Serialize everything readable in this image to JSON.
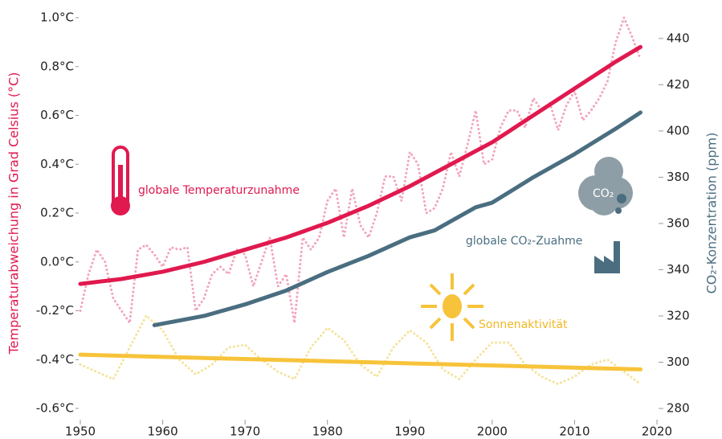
{
  "chart_data": {
    "type": "line",
    "y_label": "Temperaturabweichung in Grad Celsius (°C)",
    "y2_label": "CO₂-Konzentration (ppm)",
    "xlim": [
      1950,
      2020
    ],
    "xticks": [
      1950,
      1960,
      1970,
      1980,
      1990,
      2000,
      2010,
      2020
    ],
    "ylim": [
      -0.6,
      1.0
    ],
    "yticks": [
      {
        "value": -0.6,
        "label": "-0.6°C"
      },
      {
        "value": -0.4,
        "label": "-0.4°C"
      },
      {
        "value": -0.2,
        "label": "-0.2°C"
      },
      {
        "value": 0.0,
        "label": "0.0°C"
      },
      {
        "value": 0.2,
        "label": "0.2°C"
      },
      {
        "value": 0.4,
        "label": "0.4°C"
      },
      {
        "value": 0.6,
        "label": "0.6°C"
      },
      {
        "value": 0.8,
        "label": "0.8°C"
      },
      {
        "value": 1.0,
        "label": "1.0°C"
      }
    ],
    "y2lim": [
      280,
      449
    ],
    "y2ticks": [
      280,
      300,
      320,
      340,
      360,
      380,
      400,
      420,
      440
    ],
    "grid": false,
    "annotations": [
      {
        "text": "globale Temperaturzunahme",
        "color": "#e0194f"
      },
      {
        "text": "globale CO₂-Zuahme",
        "color": "#4a6e80"
      },
      {
        "text": "Sonnenaktivität",
        "color": "#f2b824"
      },
      {
        "text": "CO₂",
        "color": "#ffffff"
      }
    ],
    "series": [
      {
        "color": "#f5e39a",
        "linestyle": "dotted",
        "axis": "y",
        "x": [
          1950,
          1952,
          1954,
          1956,
          1958,
          1960,
          1962,
          1964,
          1966,
          1968,
          1970,
          1972,
          1974,
          1976,
          1978,
          1980,
          1982,
          1984,
          1986,
          1988,
          1990,
          1992,
          1994,
          1996,
          1998,
          2000,
          2002,
          2004,
          2006,
          2008,
          2010,
          2012,
          2014,
          2016,
          2018
        ],
        "values": [
          -0.42,
          -0.45,
          -0.48,
          -0.35,
          -0.22,
          -0.28,
          -0.4,
          -0.46,
          -0.42,
          -0.35,
          -0.34,
          -0.4,
          -0.45,
          -0.48,
          -0.35,
          -0.27,
          -0.32,
          -0.42,
          -0.47,
          -0.35,
          -0.28,
          -0.33,
          -0.44,
          -0.48,
          -0.4,
          -0.33,
          -0.33,
          -0.42,
          -0.47,
          -0.5,
          -0.47,
          -0.42,
          -0.4,
          -0.45,
          -0.5
        ]
      },
      {
        "color": "#f2a5bb",
        "linestyle": "dotted",
        "axis": "y",
        "x": [
          1950,
          1951,
          1952,
          1953,
          1954,
          1955,
          1956,
          1957,
          1958,
          1959,
          1960,
          1961,
          1962,
          1963,
          1964,
          1965,
          1966,
          1967,
          1968,
          1969,
          1970,
          1971,
          1972,
          1973,
          1974,
          1975,
          1976,
          1977,
          1978,
          1979,
          1980,
          1981,
          1982,
          1983,
          1984,
          1985,
          1986,
          1987,
          1988,
          1989,
          1990,
          1991,
          1992,
          1993,
          1994,
          1995,
          1996,
          1997,
          1998,
          1999,
          2000,
          2001,
          2002,
          2003,
          2004,
          2005,
          2006,
          2007,
          2008,
          2009,
          2010,
          2011,
          2012,
          2013,
          2014,
          2015,
          2016,
          2017,
          2018
        ],
        "values": [
          -0.2,
          -0.05,
          0.05,
          0.0,
          -0.15,
          -0.2,
          -0.25,
          0.05,
          0.07,
          0.03,
          -0.02,
          0.06,
          0.05,
          0.06,
          -0.2,
          -0.15,
          -0.05,
          -0.02,
          -0.05,
          0.05,
          0.03,
          -0.1,
          0.0,
          0.1,
          -0.1,
          -0.05,
          -0.25,
          0.1,
          0.05,
          0.1,
          0.25,
          0.3,
          0.1,
          0.3,
          0.15,
          0.1,
          0.2,
          0.35,
          0.35,
          0.25,
          0.45,
          0.4,
          0.2,
          0.22,
          0.3,
          0.45,
          0.35,
          0.48,
          0.62,
          0.4,
          0.42,
          0.55,
          0.62,
          0.62,
          0.55,
          0.67,
          0.62,
          0.65,
          0.54,
          0.64,
          0.7,
          0.58,
          0.62,
          0.67,
          0.74,
          0.9,
          1.0,
          0.92,
          0.83
        ]
      },
      {
        "color": "#f7c33a",
        "linestyle": "solid",
        "axis": "y",
        "x": [
          1950,
          2018
        ],
        "values": [
          -0.38,
          -0.44
        ]
      },
      {
        "color": "#4a6e80",
        "linestyle": "solid",
        "axis": "y2",
        "x": [
          1959,
          1962,
          1965,
          1970,
          1975,
          1980,
          1985,
          1990,
          1993,
          1995,
          1998,
          2000,
          2005,
          2010,
          2015,
          2018
        ],
        "values": [
          316,
          318,
          320,
          325,
          331,
          339,
          346,
          354,
          357,
          361,
          367,
          369,
          380,
          390,
          401,
          408
        ]
      },
      {
        "color": "#e0194f",
        "linestyle": "solid",
        "axis": "y",
        "x": [
          1950,
          1955,
          1960,
          1965,
          1970,
          1975,
          1980,
          1985,
          1990,
          1995,
          2000,
          2005,
          2010,
          2015,
          2018
        ],
        "values": [
          -0.09,
          -0.07,
          -0.04,
          0.0,
          0.05,
          0.1,
          0.16,
          0.23,
          0.31,
          0.4,
          0.49,
          0.6,
          0.71,
          0.82,
          0.88
        ]
      }
    ]
  }
}
